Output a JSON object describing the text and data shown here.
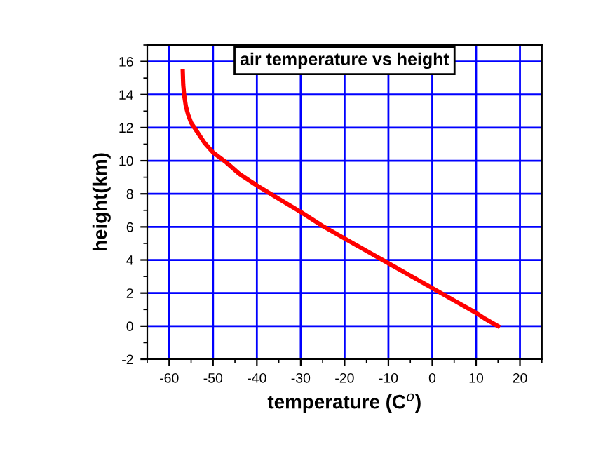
{
  "chart_data": {
    "type": "line",
    "title": "air temperature vs height",
    "xlabel": "temperature (C$^{o}$)",
    "ylabel": "height(km)",
    "x": [
      15,
      12,
      10,
      5,
      0,
      -5,
      -10,
      -15,
      -20,
      -25,
      -30,
      -35,
      -40,
      -44,
      -47,
      -50,
      -52,
      -53,
      -54,
      -55,
      -55.7,
      -56.2,
      -56.6,
      -56.8,
      -56.9
    ],
    "series": [
      {
        "color": "#ff0000",
        "values": [
          0,
          0.45,
          0.8,
          1.55,
          2.3,
          3.05,
          3.8,
          4.55,
          5.3,
          6.05,
          6.9,
          7.7,
          8.5,
          9.2,
          9.9,
          10.5,
          11.1,
          11.5,
          11.9,
          12.3,
          12.8,
          13.3,
          14,
          14.6,
          15.4
        ]
      }
    ],
    "xlim": [
      -65,
      25
    ],
    "ylim": [
      -2,
      17
    ],
    "xticks": [
      -60,
      -50,
      -40,
      -30,
      -20,
      -10,
      0,
      10,
      20
    ],
    "yticks": [
      -2,
      0,
      2,
      4,
      6,
      8,
      10,
      12,
      14,
      16
    ],
    "grid": true,
    "marker": "none",
    "line_style": "solid"
  }
}
